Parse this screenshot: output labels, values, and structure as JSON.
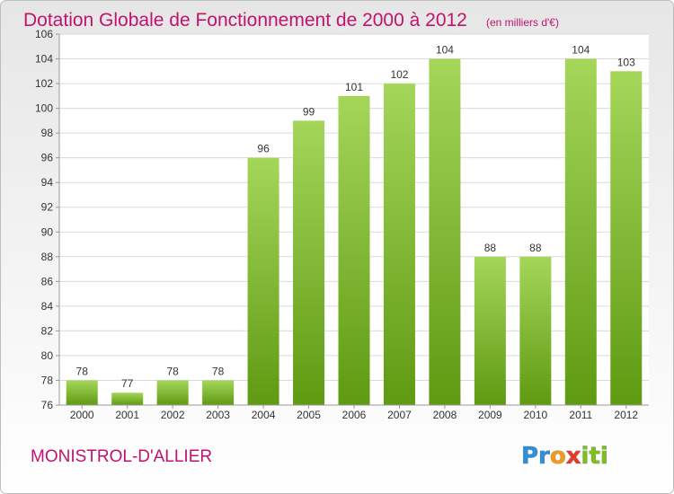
{
  "chart_data": {
    "type": "bar",
    "title": "Dotation Globale de Fonctionnement de 2000 à 2012",
    "subtitle": "(en milliers d'€)",
    "categories": [
      "2000",
      "2001",
      "2002",
      "2003",
      "2004",
      "2005",
      "2006",
      "2007",
      "2008",
      "2009",
      "2010",
      "2011",
      "2012"
    ],
    "values": [
      78,
      77,
      78,
      78,
      96,
      99,
      101,
      102,
      104,
      88,
      88,
      104,
      103
    ],
    "ylim": [
      76,
      106
    ],
    "yticks": [
      76,
      78,
      80,
      82,
      84,
      86,
      88,
      90,
      92,
      94,
      96,
      98,
      100,
      102,
      104,
      106
    ],
    "grid": true,
    "colors": {
      "title": "#c0136f",
      "bar_light": "#a4d65a",
      "bar_dark": "#5f9a12",
      "grid": "#dadada",
      "text": "#333333"
    }
  },
  "footer": {
    "place_name": "MONISTROL-D'ALLIER",
    "brand": "Proxiti"
  }
}
